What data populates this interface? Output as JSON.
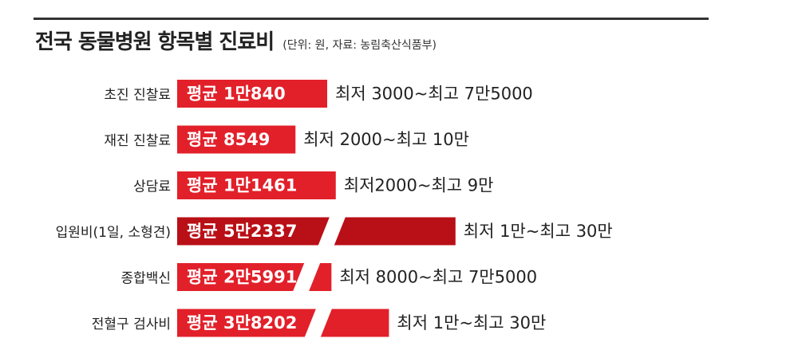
{
  "title": "전국 동물병원 항목별 진료비",
  "subtitle": "(단위: 원, 자료: 농림축산식품부)",
  "colors": {
    "bar": "#e2202a",
    "bar_dark": "#b90f16",
    "text": "#222222",
    "rule": "#333333"
  },
  "chart_data": {
    "type": "bar",
    "orientation": "horizontal",
    "axis_break": true,
    "categories": [
      "초진 진찰료",
      "재진 진찰료",
      "상담료",
      "입원비(1일, 소형견)",
      "종합백신",
      "전혈구 검사비"
    ],
    "values": [
      10840,
      8549,
      11461,
      52337,
      25991,
      38202
    ],
    "value_labels": [
      "평균 1만840",
      "평균 8549",
      "평균 1만1461",
      "평균 5만2337",
      "평균 2만5991",
      "평균 3만8202"
    ],
    "range_labels": [
      "최저 3000~최고 7만5000",
      "최저 2000~최고 10만",
      "최저2000~최고 9만",
      "최저 1만~최고 30만",
      "최저 8000~최고 7만5000",
      "최저 1만~최고 30만"
    ],
    "highlight_index": 3
  }
}
